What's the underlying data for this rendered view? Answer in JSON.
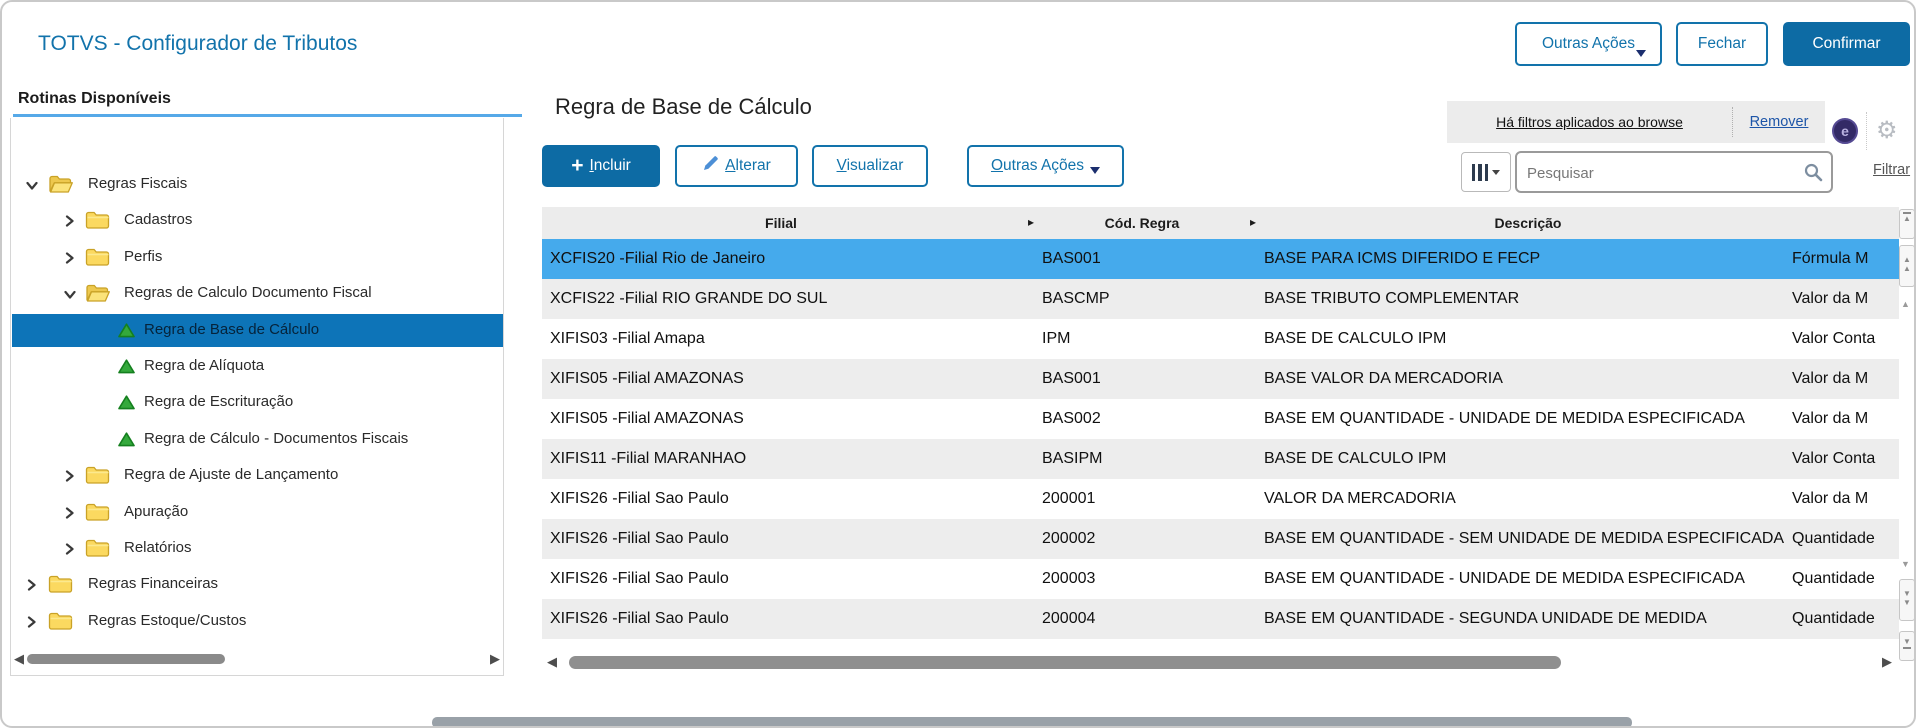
{
  "window": {
    "title": "TOTVS - Configurador de Tributos"
  },
  "header": {
    "outras_acoes": "Outras Ações",
    "fechar": "Fechar",
    "confirmar": "Confirmar",
    "badge_letter": "e"
  },
  "sidebar": {
    "heading": "Rotinas Disponíveis",
    "tree": [
      {
        "label": "Regras Fiscais",
        "level": 0,
        "icon": "folder-open",
        "chevron": "down"
      },
      {
        "label": "Cadastros",
        "level": 1,
        "icon": "folder",
        "chevron": "right"
      },
      {
        "label": "Perfis",
        "level": 1,
        "icon": "folder",
        "chevron": "right"
      },
      {
        "label": "Regras de Calculo Documento Fiscal",
        "level": 1,
        "icon": "folder-open",
        "chevron": "down"
      },
      {
        "label": "Regra de Base de Cálculo",
        "level": 2,
        "icon": "rule",
        "selected": true
      },
      {
        "label": "Regra de Alíquota",
        "level": 2,
        "icon": "rule"
      },
      {
        "label": "Regra de Escrituração",
        "level": 2,
        "icon": "rule"
      },
      {
        "label": "Regra de Cálculo - Documentos Fiscais",
        "level": 2,
        "icon": "rule"
      },
      {
        "label": "Regra de Ajuste de Lançamento",
        "level": 1,
        "icon": "folder",
        "chevron": "right"
      },
      {
        "label": "Apuração",
        "level": 1,
        "icon": "folder",
        "chevron": "right"
      },
      {
        "label": "Relatórios",
        "level": 1,
        "icon": "folder",
        "chevron": "right"
      },
      {
        "label": "Regras Financeiras",
        "level": 0,
        "icon": "folder",
        "chevron": "right"
      },
      {
        "label": "Regras Estoque/Custos",
        "level": 0,
        "icon": "folder",
        "chevron": "right"
      }
    ]
  },
  "main": {
    "title": "Regra de Base de Cálculo",
    "toolbar": [
      {
        "name": "incluir",
        "label": "Incluir",
        "accel": "I",
        "icon": "plus",
        "primary": true
      },
      {
        "name": "alterar",
        "label": "Alterar",
        "accel": "A",
        "icon": "pencil"
      },
      {
        "name": "visualizar",
        "label": "Visualizar",
        "accel": "V"
      },
      {
        "name": "outras-acoes",
        "label": "Outras Ações",
        "accel": "O",
        "caret": true
      }
    ],
    "filter_bar": {
      "message": "Há filtros aplicados ao browse",
      "action": "Remover"
    },
    "search": {
      "placeholder": "Pesquisar"
    },
    "filter_link": "Filtrar",
    "table": {
      "columns": [
        "Filial",
        "Cód. Regra",
        "Descrição"
      ],
      "rows": [
        {
          "filial": "XCFIS20 -Filial Rio de Janeiro",
          "codigo": "BAS001",
          "descricao": "BASE PARA ICMS DIFERIDO E FECP",
          "extra": "Fórmula M",
          "selected": true
        },
        {
          "filial": "XCFIS22 -Filial RIO GRANDE DO SUL",
          "codigo": "BASCMP",
          "descricao": "BASE TRIBUTO COMPLEMENTAR",
          "extra": "Valor da M"
        },
        {
          "filial": "XIFIS03 -Filial Amapa",
          "codigo": "IPM",
          "descricao": "BASE DE CALCULO IPM",
          "extra": "Valor Conta"
        },
        {
          "filial": "XIFIS05 -Filial AMAZONAS",
          "codigo": "BAS001",
          "descricao": "BASE VALOR DA MERCADORIA",
          "extra": "Valor da M"
        },
        {
          "filial": "XIFIS05 -Filial AMAZONAS",
          "codigo": "BAS002",
          "descricao": "BASE EM QUANTIDADE - UNIDADE DE MEDIDA ESPECIFICADA",
          "extra": "Valor da M"
        },
        {
          "filial": "XIFIS11 -Filial MARANHAO",
          "codigo": "BASIPM",
          "descricao": "BASE DE CALCULO IPM",
          "extra": "Valor Conta"
        },
        {
          "filial": "XIFIS26 -Filial Sao Paulo",
          "codigo": "200001",
          "descricao": "VALOR DA MERCADORIA",
          "extra": "Valor da M"
        },
        {
          "filial": "XIFIS26 -Filial Sao Paulo",
          "codigo": "200002",
          "descricao": "BASE EM QUANTIDADE - SEM UNIDADE DE MEDIDA ESPECIFICADA",
          "extra": "Quantidade"
        },
        {
          "filial": "XIFIS26 -Filial Sao Paulo",
          "codigo": "200003",
          "descricao": "BASE EM QUANTIDADE - UNIDADE DE MEDIDA ESPECIFICADA",
          "extra": "Quantidade"
        },
        {
          "filial": "XIFIS26 -Filial Sao Paulo",
          "codigo": "200004",
          "descricao": "BASE EM QUANTIDADE - SEGUNDA UNIDADE DE MEDIDA",
          "extra": "Quantidade"
        }
      ]
    }
  },
  "icons": {
    "gear": "⚙",
    "column_arrow": "▸",
    "scroll_left": "◀",
    "scroll_right": "▶",
    "up": "▲",
    "down": "▼"
  },
  "colors": {
    "accent": "#0d6ba4",
    "link_blue": "#1273ab",
    "tree_selection": "#0d74b8",
    "row_selection": "#45aaec",
    "zebra_gray": "#ededed",
    "underline_blue": "#56a9e8"
  }
}
